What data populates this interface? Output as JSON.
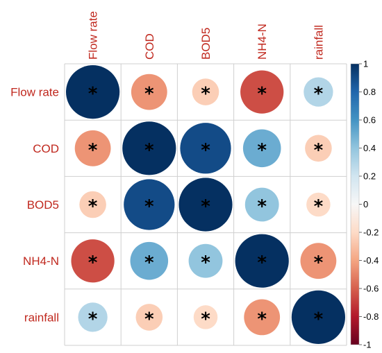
{
  "chart_data": {
    "type": "heatmap",
    "variables": [
      "Flow rate",
      "COD",
      "BOD5",
      "NH4-N",
      "rainfall"
    ],
    "matrix": [
      [
        1.0,
        -0.45,
        -0.25,
        -0.65,
        0.3
      ],
      [
        -0.45,
        1.0,
        0.9,
        0.5,
        -0.25
      ],
      [
        -0.25,
        0.9,
        1.0,
        0.4,
        -0.2
      ],
      [
        -0.65,
        0.5,
        0.4,
        1.0,
        -0.45
      ],
      [
        0.3,
        -0.25,
        -0.2,
        -0.45,
        1.0
      ]
    ],
    "significance_marker": "*",
    "colorbar": {
      "ticks": [
        "1",
        "0.8",
        "0.6",
        "0.4",
        "0.2",
        "0",
        "-0.2",
        "-0.4",
        "-0.6",
        "-0.8",
        "-1"
      ],
      "values": [
        1,
        0.8,
        0.6,
        0.4,
        0.2,
        0,
        -0.2,
        -0.4,
        -0.6,
        -0.8,
        -1
      ],
      "range": [
        -1,
        1
      ]
    },
    "colors": {
      "strong_positive": "#053061",
      "positive": "#4393c3",
      "neutral": "#f7f7f7",
      "negative": "#d6604d",
      "strong_negative": "#67001f",
      "label": "#c0281e",
      "grid": "#cfcfcf"
    }
  }
}
